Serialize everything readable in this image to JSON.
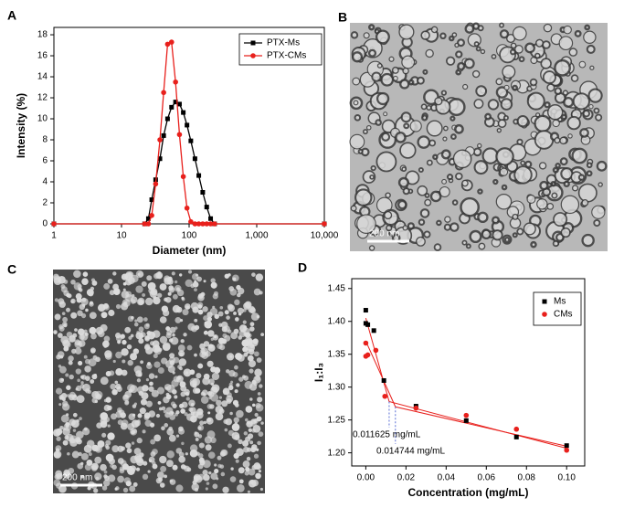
{
  "panel_labels": [
    "A",
    "B",
    "C",
    "D"
  ],
  "images": [
    {
      "scale_bar": "200 nm"
    },
    {
      "scale_bar": "200 nm"
    }
  ],
  "chart_data": [
    {
      "type": "line",
      "xlabel": "Diameter (nm)",
      "ylabel": "Intensity (%)",
      "xlog": true,
      "xlim": [
        1,
        10000
      ],
      "xticks": [
        1,
        10,
        100,
        {
          "value": 1000,
          "label": "1,000"
        },
        {
          "value": 10000,
          "label": "10,000"
        }
      ],
      "ylim": [
        0,
        18.7
      ],
      "yticks": [
        0,
        2,
        4,
        6,
        8,
        10,
        12,
        14,
        16,
        18
      ],
      "legend": "top-right",
      "x": [
        1,
        22,
        25,
        28,
        32,
        37,
        42,
        48,
        55,
        63,
        72,
        82,
        93,
        106,
        122,
        139,
        159,
        182,
        208,
        238,
        10000
      ],
      "series": [
        {
          "name": "PTX-Ms",
          "color": "#000000",
          "marker": "square",
          "values": [
            0,
            0,
            0.5,
            2.3,
            4.2,
            6.2,
            8.4,
            10.0,
            11.1,
            11.6,
            11.4,
            10.6,
            9.4,
            7.9,
            6.2,
            4.6,
            3.0,
            1.6,
            0.5,
            0,
            0
          ]
        },
        {
          "name": "PTX-CMs",
          "color": "#e8201c",
          "marker": "circle",
          "values": [
            0,
            0,
            0,
            0.8,
            3.8,
            8.0,
            12.5,
            17.1,
            17.3,
            13.5,
            8.5,
            4.5,
            1.5,
            0.2,
            0,
            0,
            0,
            0,
            0,
            0,
            0
          ]
        }
      ]
    },
    {
      "type": "scatter",
      "xlabel": "Concentration (mg/mL)",
      "ylabel": "I₁:I₃",
      "xlim": [
        -0.007,
        0.109
      ],
      "xticks": [
        {
          "value": 0,
          "label": "0.00"
        },
        {
          "value": 0.02,
          "label": "0.02"
        },
        {
          "value": 0.04,
          "label": "0.04"
        },
        {
          "value": 0.06,
          "label": "0.06"
        },
        {
          "value": 0.08,
          "label": "0.08"
        },
        {
          "value": 0.1,
          "label": "0.10"
        }
      ],
      "ylim": [
        1.18,
        1.465
      ],
      "yticks": [
        {
          "value": 1.2,
          "label": "1.20"
        },
        1.25,
        {
          "value": 1.3,
          "label": "1.30"
        },
        1.35,
        {
          "value": 1.4,
          "label": "1.40"
        },
        1.45
      ],
      "legend": "top-right",
      "series": [
        {
          "name": "Ms",
          "color": "#000000",
          "marker": "square",
          "x": [
            0,
            0,
            0.001,
            0.004,
            0.009,
            0.025,
            0.05,
            0.075,
            0.1
          ],
          "values": [
            1.417,
            1.397,
            1.395,
            1.386,
            1.31,
            1.271,
            1.249,
            1.224,
            1.211
          ]
        },
        {
          "name": "CMs",
          "color": "#e8201c",
          "marker": "circle",
          "x": [
            0,
            0,
            0.001,
            0.005,
            0.0095,
            0.025,
            0.05,
            0.075,
            0.1
          ],
          "values": [
            1.367,
            1.347,
            1.349,
            1.356,
            1.286,
            1.268,
            1.257,
            1.236,
            1.204
          ]
        }
      ],
      "fits": [
        {
          "color": "#e8201c",
          "x": [
            0,
            0.011625,
            0.1
          ],
          "values": [
            1.405,
            1.278,
            1.207
          ]
        },
        {
          "color": "#e8201c",
          "x": [
            0,
            0.014744,
            0.1
          ],
          "values": [
            1.37,
            1.27,
            1.21
          ]
        }
      ],
      "annotations": [
        {
          "text": "0.011625 mg/mL",
          "x": 0.011625,
          "y": 1.278
        },
        {
          "text": "0.014744 mg/mL",
          "x": 0.014744,
          "y": 1.27
        }
      ]
    }
  ]
}
